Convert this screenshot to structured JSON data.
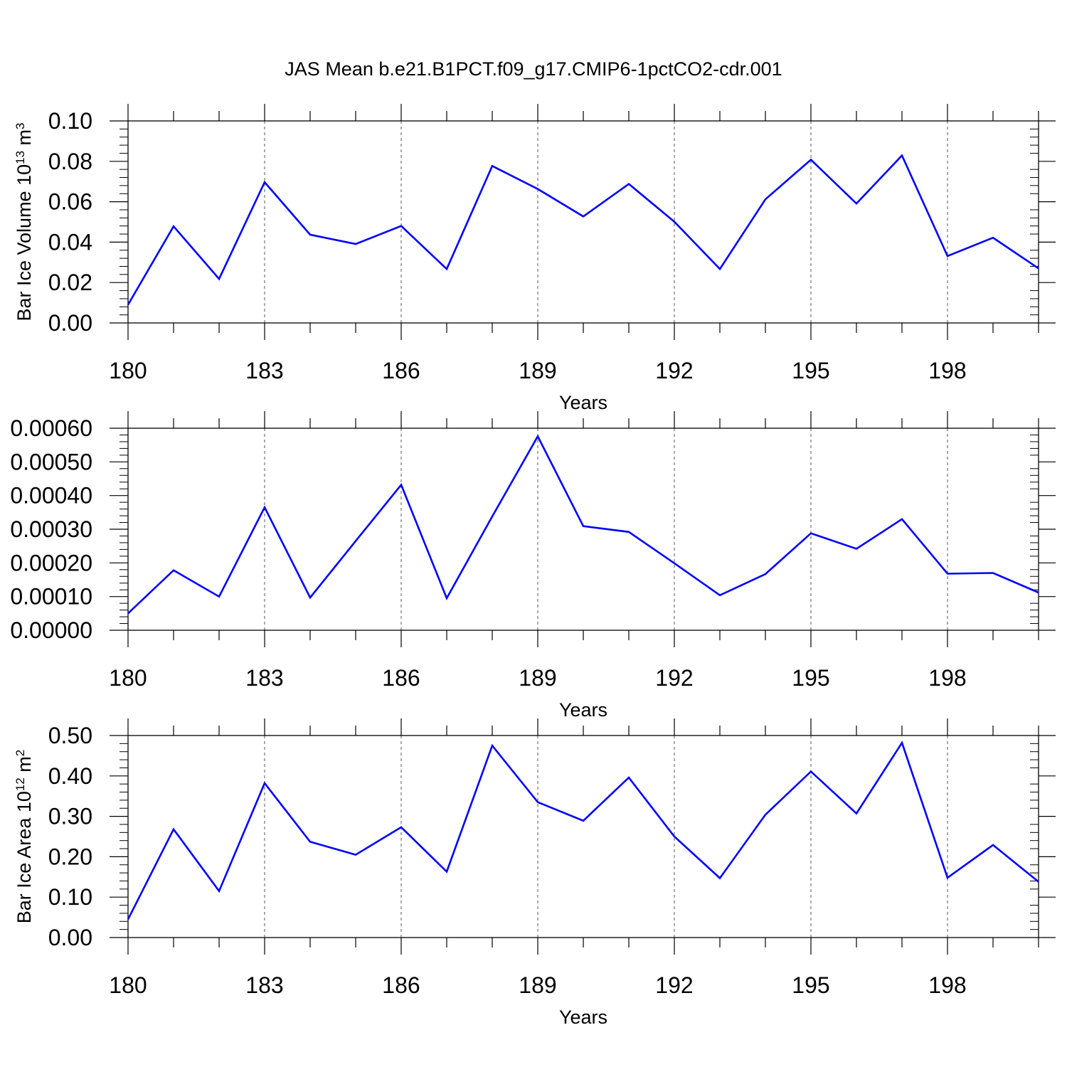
{
  "figure": {
    "title": "JAS Mean b.e21.B1PCT.f09_g17.CMIP6-1pctCO2-cdr.001",
    "line_color": "#0000ff"
  },
  "chart_data": [
    {
      "type": "line",
      "xlabel": "Years",
      "ylabel": "Bar Ice Volume 10",
      "ylabel_exponent": "13",
      "ylabel_unit": " m",
      "ylabel_unit_exponent": "3",
      "xlim": [
        180,
        200
      ],
      "ylim": [
        0,
        0.1
      ],
      "x_ticks": [
        180,
        183,
        186,
        189,
        192,
        195,
        198
      ],
      "x_tick_labels": [
        "180",
        "183",
        "186",
        "189",
        "192",
        "195",
        "198"
      ],
      "y_ticks": [
        0,
        0.02,
        0.04,
        0.06,
        0.08,
        0.1
      ],
      "y_tick_labels": [
        "0.00",
        "0.02",
        "0.04",
        "0.06",
        "0.08",
        "0.10"
      ],
      "grid": "vertical dashed at major x ticks",
      "x": [
        180,
        181,
        182,
        183,
        184,
        185,
        186,
        187,
        188,
        189,
        190,
        191,
        192,
        193,
        194,
        195,
        196,
        197,
        198,
        199,
        200
      ],
      "values": [
        0.009,
        0.0478,
        0.0218,
        0.0697,
        0.0437,
        0.0391,
        0.048,
        0.0267,
        0.0777,
        0.0663,
        0.0527,
        0.0688,
        0.0501,
        0.0267,
        0.0612,
        0.0808,
        0.0591,
        0.0829,
        0.0331,
        0.0422,
        0.027
      ]
    },
    {
      "type": "line",
      "xlabel": "Years",
      "ylabel": "",
      "xlim": [
        180,
        200
      ],
      "ylim": [
        0,
        0.0006
      ],
      "x_ticks": [
        180,
        183,
        186,
        189,
        192,
        195,
        198
      ],
      "x_tick_labels": [
        "180",
        "183",
        "186",
        "189",
        "192",
        "195",
        "198"
      ],
      "y_ticks": [
        0,
        0.0001,
        0.0002,
        0.0003,
        0.0004,
        0.0005,
        0.0006
      ],
      "y_tick_labels": [
        "0.00000",
        "0.00010",
        "0.00020",
        "0.00030",
        "0.00040",
        "0.00050",
        "0.00060"
      ],
      "grid": "vertical dashed at major x ticks",
      "x": [
        180,
        181,
        182,
        183,
        184,
        185,
        186,
        187,
        188,
        189,
        190,
        191,
        192,
        193,
        194,
        195,
        196,
        197,
        198,
        199,
        200
      ],
      "values": [
        5e-05,
        0.000178,
        0.0001,
        0.000365,
        9.7e-05,
        0.000265,
        0.000432,
        9.5e-05,
        0.000338,
        0.000576,
        0.000309,
        0.000292,
        0.000199,
        0.000104,
        0.000167,
        0.000288,
        0.000242,
        0.00033,
        0.000168,
        0.00017,
        0.000112
      ]
    },
    {
      "type": "line",
      "xlabel": "Years",
      "ylabel": "Bar Ice Area 10",
      "ylabel_exponent": "12",
      "ylabel_unit": " m",
      "ylabel_unit_exponent": "2",
      "xlim": [
        180,
        200
      ],
      "ylim": [
        0,
        0.5
      ],
      "x_ticks": [
        180,
        183,
        186,
        189,
        192,
        195,
        198
      ],
      "x_tick_labels": [
        "180",
        "183",
        "186",
        "189",
        "192",
        "195",
        "198"
      ],
      "y_ticks": [
        0,
        0.1,
        0.2,
        0.3,
        0.4,
        0.5
      ],
      "y_tick_labels": [
        "0.00",
        "0.10",
        "0.20",
        "0.30",
        "0.40",
        "0.50"
      ],
      "grid": "vertical dashed at major x ticks",
      "x": [
        180,
        181,
        182,
        183,
        184,
        185,
        186,
        187,
        188,
        189,
        190,
        191,
        192,
        193,
        194,
        195,
        196,
        197,
        198,
        199,
        200
      ],
      "values": [
        0.045,
        0.268,
        0.115,
        0.382,
        0.237,
        0.205,
        0.273,
        0.163,
        0.475,
        0.335,
        0.289,
        0.396,
        0.25,
        0.147,
        0.304,
        0.411,
        0.307,
        0.482,
        0.148,
        0.229,
        0.138
      ]
    }
  ]
}
